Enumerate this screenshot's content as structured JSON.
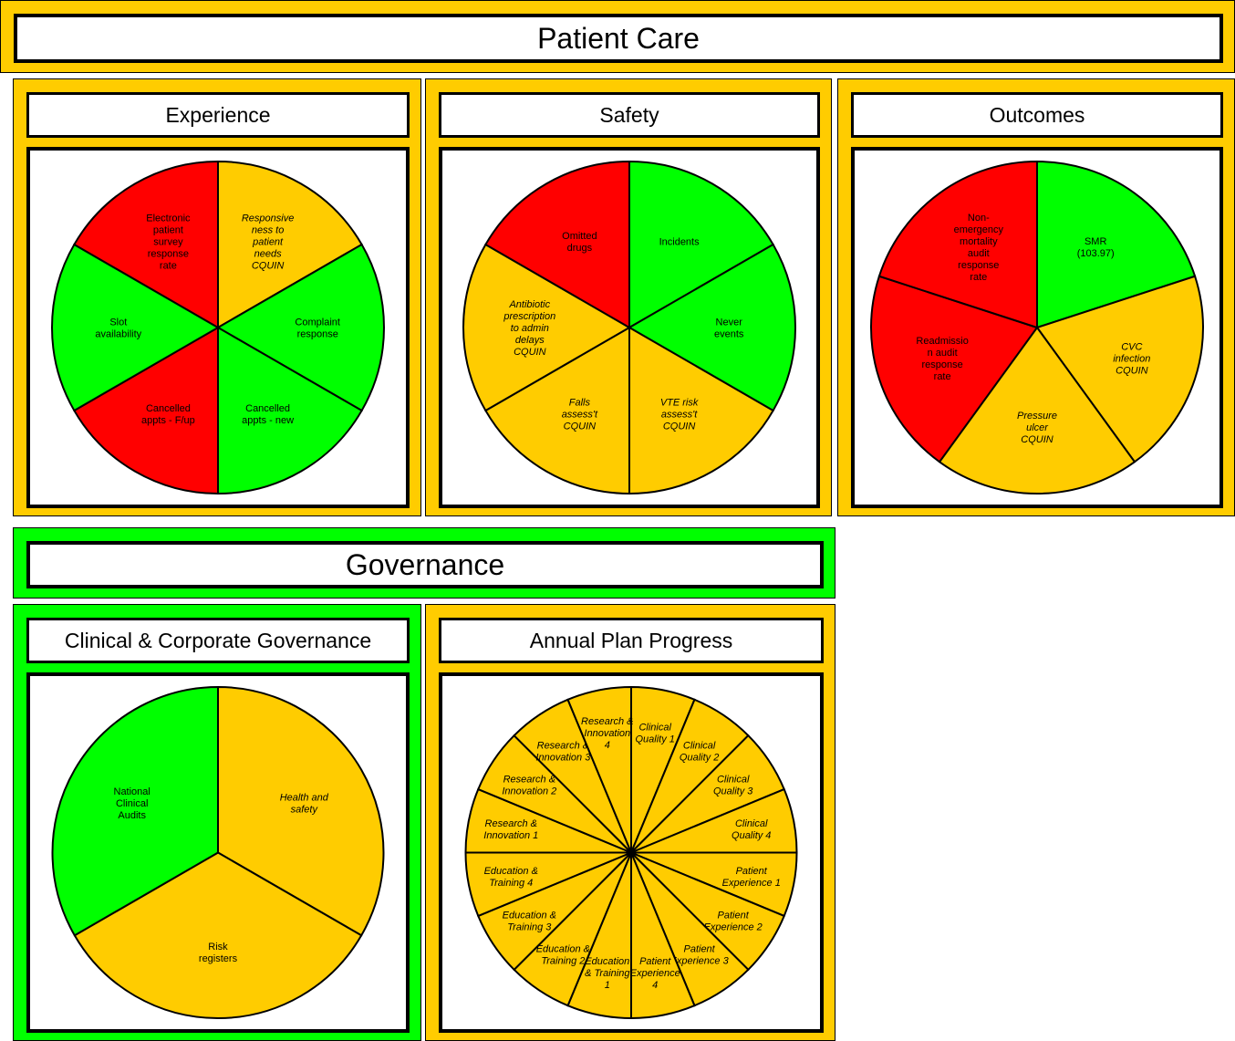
{
  "sections": [
    {
      "title": "Patient Care",
      "color": "#ffcc00"
    },
    {
      "title": "Governance",
      "color": "#00ff00"
    }
  ],
  "chart_data": [
    {
      "type": "pie",
      "title": "Experience",
      "panel_color": "#ffcc00",
      "categories": [
        "Responsive\nness to\npatient\nneeds\nCQUIN",
        "Complaint\nresponse",
        "Cancelled\nappts - new",
        "Cancelled\nappts - F/up",
        "Slot\navailability",
        "Electronic\npatient\nsurvey\nresponse\nrate"
      ],
      "values": [
        1,
        1,
        1,
        1,
        1,
        1
      ],
      "colors": [
        "#ffcc00",
        "#00ff00",
        "#00ff00",
        "#ff0000",
        "#00ff00",
        "#ff0000"
      ],
      "italic": [
        true,
        false,
        false,
        false,
        false,
        false
      ]
    },
    {
      "type": "pie",
      "title": "Safety",
      "panel_color": "#ffcc00",
      "categories": [
        "Incidents",
        "Never\nevents",
        "VTE risk\nassess't\nCQUIN",
        "Falls\nassess't\nCQUIN",
        "Antibiotic\nprescription\nto admin\ndelays\nCQUIN",
        "Omitted\ndrugs"
      ],
      "values": [
        1,
        1,
        1,
        1,
        1,
        1
      ],
      "colors": [
        "#00ff00",
        "#00ff00",
        "#ffcc00",
        "#ffcc00",
        "#ffcc00",
        "#ff0000"
      ],
      "italic": [
        false,
        false,
        true,
        true,
        true,
        false
      ]
    },
    {
      "type": "pie",
      "title": "Outcomes",
      "panel_color": "#ffcc00",
      "categories": [
        "SMR\n(103.97)",
        "CVC\ninfection\nCQUIN",
        "Pressure\nulcer\nCQUIN",
        "Readmissio\nn audit\nresponse\nrate",
        "Non-\nemergency\nmortality\naudit\nresponse\nrate"
      ],
      "values": [
        1,
        1,
        1,
        1,
        1
      ],
      "colors": [
        "#00ff00",
        "#ffcc00",
        "#ffcc00",
        "#ff0000",
        "#ff0000"
      ],
      "italic": [
        false,
        true,
        true,
        false,
        false
      ]
    },
    {
      "type": "pie",
      "title": "Clinical & Corporate Governance",
      "panel_color": "#00ff00",
      "categories": [
        "Health and\nsafety",
        "Risk\nregisters",
        "National\nClinical\nAudits"
      ],
      "values": [
        1,
        1,
        1
      ],
      "colors": [
        "#ffcc00",
        "#ffcc00",
        "#00ff00"
      ],
      "italic": [
        true,
        false,
        false
      ]
    },
    {
      "type": "pie",
      "title": "Annual Plan Progress",
      "panel_color": "#ffcc00",
      "categories": [
        "Clinical\nQuality 1",
        "Clinical\nQuality 2",
        "Clinical\nQuality 3",
        "Clinical\nQuality 4",
        "Patient\nExperience 1",
        "Patient\nExperience 2",
        "Patient\nExperience 3",
        "Patient\nExperience\n4",
        "Education\n& Training\n1",
        "Education &\nTraining 2",
        "Education &\nTraining 3",
        "Education &\nTraining 4",
        "Research &\nInnovation 1",
        "Research &\nInnovation 2",
        "Research &\nInnovation 3",
        "Research &\nInnovation\n4"
      ],
      "values": [
        1,
        1,
        1,
        1,
        1,
        1,
        1,
        1,
        1,
        1,
        1,
        1,
        1,
        1,
        1,
        1
      ],
      "colors": [
        "#ffcc00",
        "#ffcc00",
        "#ffcc00",
        "#ffcc00",
        "#ffcc00",
        "#ffcc00",
        "#ffcc00",
        "#ffcc00",
        "#ffcc00",
        "#ffcc00",
        "#ffcc00",
        "#ffcc00",
        "#ffcc00",
        "#ffcc00",
        "#ffcc00",
        "#ffcc00"
      ],
      "italic": [
        true,
        true,
        true,
        true,
        true,
        true,
        true,
        true,
        true,
        true,
        true,
        true,
        true,
        true,
        true,
        true
      ]
    }
  ]
}
